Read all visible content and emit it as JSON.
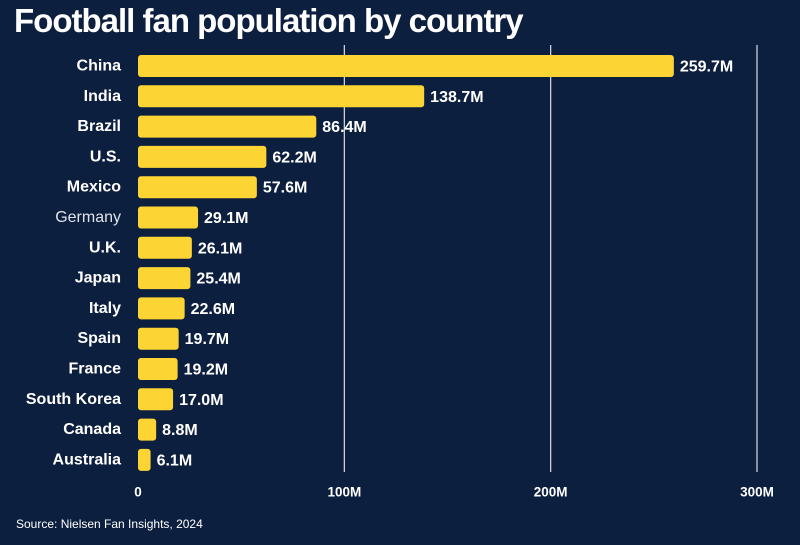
{
  "title": "Football fan population by country",
  "source": "Source: Nielsen Fan Insights, 2024",
  "colors": {
    "background": "#0d1f3f",
    "bar": "#fcd535",
    "gridline": "#d9dde6",
    "text": "#ffffff",
    "muted_label": "#dfe3ea"
  },
  "chart_data": {
    "type": "bar",
    "orientation": "horizontal",
    "title": "Football fan population by country",
    "categories": [
      "China",
      "India",
      "Brazil",
      "U.S.",
      "Mexico",
      "Germany",
      "U.K.",
      "Japan",
      "Italy",
      "Spain",
      "France",
      "South Korea",
      "Canada",
      "Australia"
    ],
    "values": [
      259.7,
      138.7,
      86.4,
      62.2,
      57.6,
      29.1,
      26.1,
      25.4,
      22.6,
      19.7,
      19.2,
      17.0,
      8.8,
      6.1
    ],
    "data_labels": [
      "259.7M",
      "138.7M",
      "86.4M",
      "62.2M",
      "57.6M",
      "29.1M",
      "26.1M",
      "25.4M",
      "22.6M",
      "19.7M",
      "19.2M",
      "17.0M",
      "8.8M",
      "6.1M"
    ],
    "xticks": [
      0,
      100,
      200,
      300
    ],
    "xtick_labels": [
      "0",
      "100M",
      "200M",
      "300M"
    ],
    "xlim": [
      0,
      300
    ],
    "unit": "M",
    "grid": true,
    "legend": "none"
  }
}
